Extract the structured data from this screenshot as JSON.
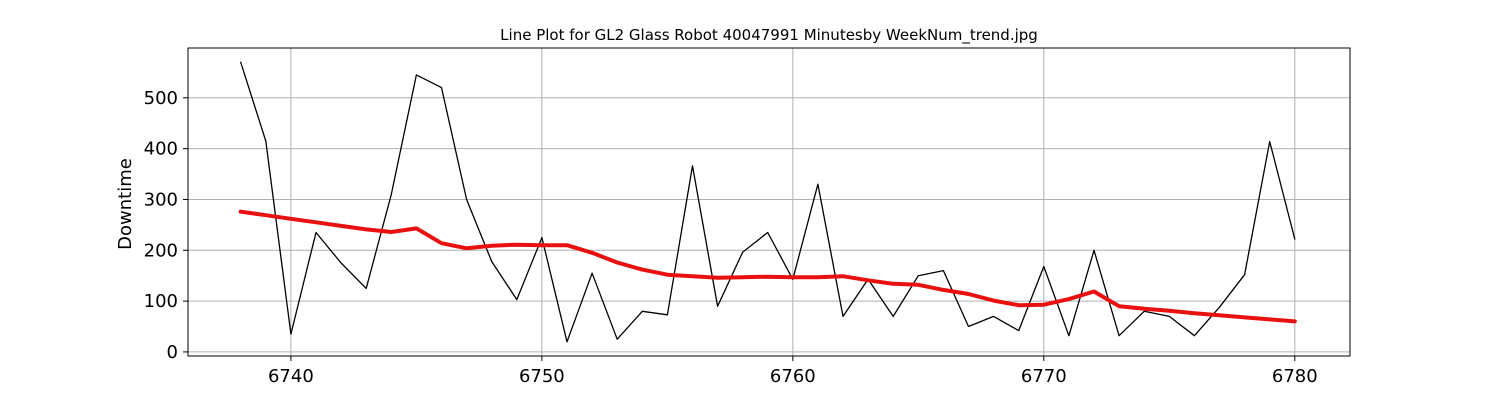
{
  "chart_data": {
    "type": "line",
    "title": "Line Plot for GL2 Glass Robot 40047991 Minutesby WeekNum_trend.jpg",
    "xlabel": "",
    "ylabel": "Downtime",
    "xlim": [
      6735.9,
      6782.2
    ],
    "ylim": [
      -8,
      598
    ],
    "xticks": [
      6740,
      6750,
      6760,
      6770,
      6780
    ],
    "yticks": [
      0,
      100,
      200,
      300,
      400,
      500
    ],
    "grid": true,
    "legend": "none",
    "x": [
      6738,
      6739,
      6740,
      6741,
      6742,
      6743,
      6744,
      6745,
      6746,
      6747,
      6748,
      6749,
      6750,
      6751,
      6752,
      6753,
      6754,
      6755,
      6756,
      6757,
      6758,
      6759,
      6760,
      6761,
      6762,
      6763,
      6764,
      6765,
      6766,
      6767,
      6768,
      6769,
      6770,
      6771,
      6772,
      6773,
      6774,
      6775,
      6776,
      6777,
      6778,
      6779,
      6780
    ],
    "series": [
      {
        "color": "#000000",
        "values": [
          570,
          415,
          35,
          235,
          175,
          125,
          310,
          545,
          520,
          300,
          178,
          103,
          225,
          20,
          155,
          25,
          80,
          73,
          366,
          90,
          196,
          235,
          143,
          330,
          70,
          143,
          70,
          150,
          160,
          50,
          70,
          42,
          168,
          32,
          200,
          32,
          80,
          70,
          32,
          88,
          152,
          414,
          222
        ]
      },
      {
        "color": "#e8110f",
        "values": [
          276,
          269,
          262,
          255,
          248,
          241,
          236,
          243,
          214,
          204,
          209,
          211,
          210,
          210,
          195,
          176,
          162,
          152,
          149,
          146,
          147,
          148,
          147,
          147,
          149,
          141,
          134,
          132,
          122,
          114,
          101,
          92,
          93,
          104,
          119,
          90,
          85,
          81,
          76,
          72,
          68,
          64,
          60
        ]
      }
    ]
  }
}
